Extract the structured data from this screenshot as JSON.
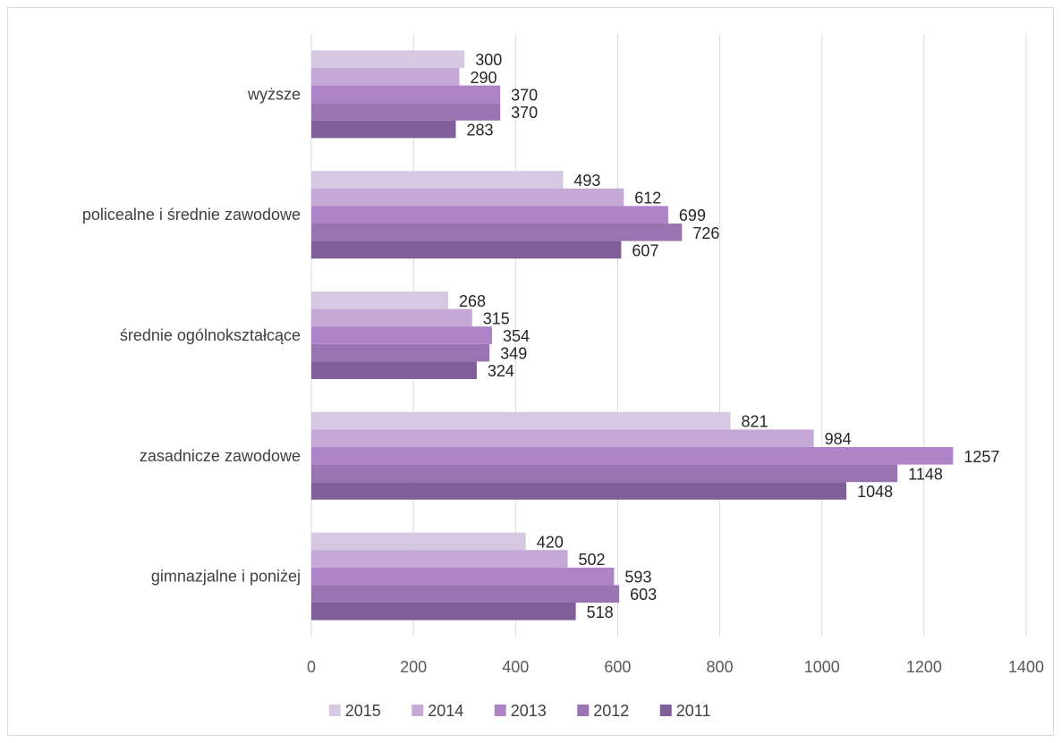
{
  "chart_data": {
    "type": "bar",
    "orientation": "horizontal",
    "categories": [
      "wyższe",
      "policealne i średnie zawodowe",
      "średnie ogólnokształcące",
      "zasadnicze zawodowe",
      "gimnazjalne i poniżej"
    ],
    "series": [
      {
        "name": "2015",
        "color": "#d7c8e1",
        "values": [
          300,
          493,
          268,
          821,
          420
        ]
      },
      {
        "name": "2014",
        "color": "#c4a8d6",
        "values": [
          290,
          612,
          315,
          984,
          502
        ]
      },
      {
        "name": "2013",
        "color": "#ae83c8",
        "values": [
          370,
          699,
          354,
          1257,
          593
        ]
      },
      {
        "name": "2012",
        "color": "#9a74b0",
        "values": [
          370,
          726,
          349,
          1148,
          603
        ]
      },
      {
        "name": "2011",
        "color": "#805f98",
        "values": [
          283,
          607,
          324,
          1048,
          518
        ]
      }
    ],
    "xlim": [
      0,
      1400
    ],
    "x_ticks": [
      0,
      200,
      400,
      600,
      800,
      1000,
      1200,
      1400
    ],
    "grid": true,
    "legend_position": "bottom",
    "data_labels": true
  }
}
